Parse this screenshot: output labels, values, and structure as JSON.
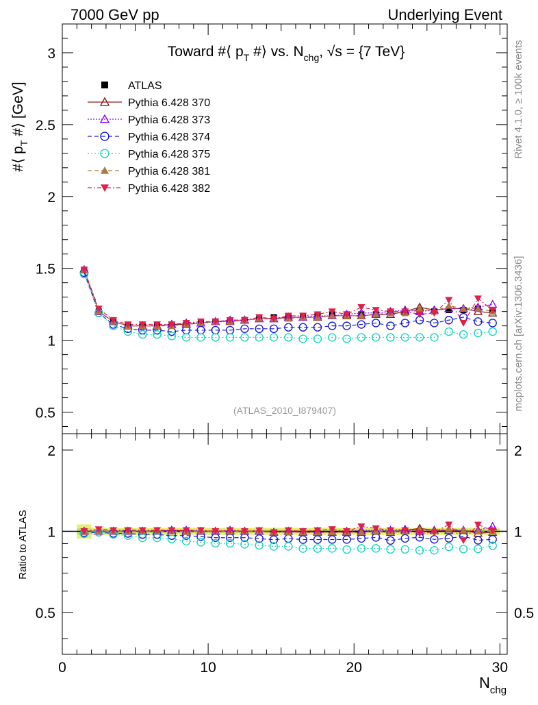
{
  "header": {
    "left": "7000 GeV pp",
    "right": "Underlying Event"
  },
  "side_labels": {
    "rivet": "Rivet 4.1.0, ≥ 100k events",
    "mcplots": "mcplots.cern.ch [arXiv:1306.3436]"
  },
  "chart_data": {
    "type": "scatter",
    "title": "Toward #⟨ p_T #⟩ vs. N_chg, √s = {7 TeV}",
    "title_parts": {
      "a": "Toward #⟨ p",
      "a_sub": "T",
      "b": " #⟩ vs. N",
      "b_sub": "chg",
      "c": ", √s = {7 TeV}"
    },
    "ylabel_parts": {
      "a": "#⟨ p",
      "a_sub": "T",
      "b": " #⟩ [GeV]"
    },
    "xlabel_parts": {
      "a": "N",
      "a_sub": "chg"
    },
    "ratio_ylabel": "Ratio to ATLAS",
    "watermark": "(ATLAS_2010_I879407)",
    "xlim": [
      0,
      30.5
    ],
    "ylim": [
      0.35,
      3.2
    ],
    "ratio_ylim": [
      0.35,
      2.3
    ],
    "x_ticks": [
      0,
      10,
      20,
      30
    ],
    "x_tick_labels": [
      "0",
      "10",
      "20",
      "30"
    ],
    "y_ticks": [
      0.5,
      1,
      1.5,
      2,
      2.5,
      3
    ],
    "y_tick_labels": [
      "0.5",
      "1",
      "1.5",
      "2",
      "2.5",
      "3"
    ],
    "ratio_ticks": [
      0.5,
      1,
      2
    ],
    "ratio_tick_labels": [
      "0.5",
      "1",
      "2"
    ],
    "x": [
      1.5,
      2.5,
      3.5,
      4.5,
      5.5,
      6.5,
      7.5,
      8.5,
      9.5,
      10.5,
      11.5,
      12.5,
      13.5,
      14.5,
      15.5,
      16.5,
      17.5,
      18.5,
      19.5,
      20.5,
      21.5,
      22.5,
      23.5,
      24.5,
      25.5,
      26.5,
      27.5,
      28.5,
      29.5
    ],
    "reference": {
      "name": "ATLAS",
      "values": [
        1.49,
        1.2,
        1.13,
        1.1,
        1.1,
        1.1,
        1.1,
        1.11,
        1.12,
        1.13,
        1.13,
        1.14,
        1.15,
        1.16,
        1.16,
        1.17,
        1.17,
        1.18,
        1.18,
        1.18,
        1.18,
        1.19,
        1.19,
        1.2,
        1.2,
        1.21,
        1.21,
        1.22,
        1.2
      ]
    },
    "series": [
      {
        "name": "Pythia 6.428 370",
        "color": "#8b1a1a",
        "marker": "triangle-open",
        "dash": "",
        "values": [
          1.49,
          1.2,
          1.13,
          1.1,
          1.1,
          1.1,
          1.11,
          1.11,
          1.12,
          1.13,
          1.13,
          1.14,
          1.15,
          1.15,
          1.16,
          1.16,
          1.16,
          1.17,
          1.17,
          1.17,
          1.18,
          1.18,
          1.2,
          1.23,
          1.21,
          1.22,
          1.22,
          1.2,
          1.19
        ]
      },
      {
        "name": "Pythia 6.428 373",
        "color": "#8b00ff",
        "marker": "triangle-open",
        "dash": "2,2",
        "values": [
          1.49,
          1.2,
          1.13,
          1.1,
          1.1,
          1.1,
          1.11,
          1.12,
          1.12,
          1.13,
          1.14,
          1.14,
          1.15,
          1.15,
          1.16,
          1.16,
          1.17,
          1.17,
          1.18,
          1.19,
          1.19,
          1.2,
          1.21,
          1.2,
          1.21,
          1.22,
          1.22,
          1.23,
          1.25
        ]
      },
      {
        "name": "Pythia 6.428 374",
        "color": "#1a1ad6",
        "marker": "circle-open",
        "dash": "6,4",
        "values": [
          1.47,
          1.19,
          1.11,
          1.08,
          1.07,
          1.07,
          1.06,
          1.07,
          1.07,
          1.07,
          1.07,
          1.08,
          1.08,
          1.08,
          1.09,
          1.09,
          1.09,
          1.1,
          1.1,
          1.11,
          1.12,
          1.1,
          1.12,
          1.14,
          1.12,
          1.14,
          1.16,
          1.13,
          1.12
        ]
      },
      {
        "name": "Pythia 6.428 375",
        "color": "#1ad6c0",
        "marker": "circle-open",
        "dash": "2,3",
        "values": [
          1.46,
          1.19,
          1.1,
          1.06,
          1.04,
          1.04,
          1.03,
          1.02,
          1.02,
          1.02,
          1.02,
          1.02,
          1.02,
          1.02,
          1.02,
          1.01,
          1.01,
          1.02,
          1.01,
          1.02,
          1.02,
          1.02,
          1.02,
          1.02,
          1.02,
          1.06,
          1.04,
          1.05,
          1.06
        ]
      },
      {
        "name": "Pythia 6.428 381",
        "color": "#b07840",
        "marker": "triangle-filled",
        "dash": "6,4",
        "values": [
          1.49,
          1.2,
          1.13,
          1.1,
          1.1,
          1.1,
          1.1,
          1.11,
          1.12,
          1.13,
          1.13,
          1.14,
          1.15,
          1.15,
          1.15,
          1.16,
          1.16,
          1.17,
          1.17,
          1.17,
          1.18,
          1.19,
          1.19,
          1.22,
          1.2,
          1.24,
          1.22,
          1.22,
          1.2
        ]
      },
      {
        "name": "Pythia 6.428 382",
        "color": "#e0204a",
        "marker": "triangle-down-filled",
        "dash": "6,3,2,3",
        "values": [
          1.49,
          1.22,
          1.14,
          1.11,
          1.11,
          1.11,
          1.11,
          1.12,
          1.13,
          1.13,
          1.14,
          1.14,
          1.16,
          1.15,
          1.17,
          1.17,
          1.18,
          1.2,
          1.18,
          1.23,
          1.21,
          1.2,
          1.2,
          1.18,
          1.19,
          1.28,
          1.12,
          1.29,
          1.21
        ]
      }
    ],
    "legend_position": "top-left"
  }
}
